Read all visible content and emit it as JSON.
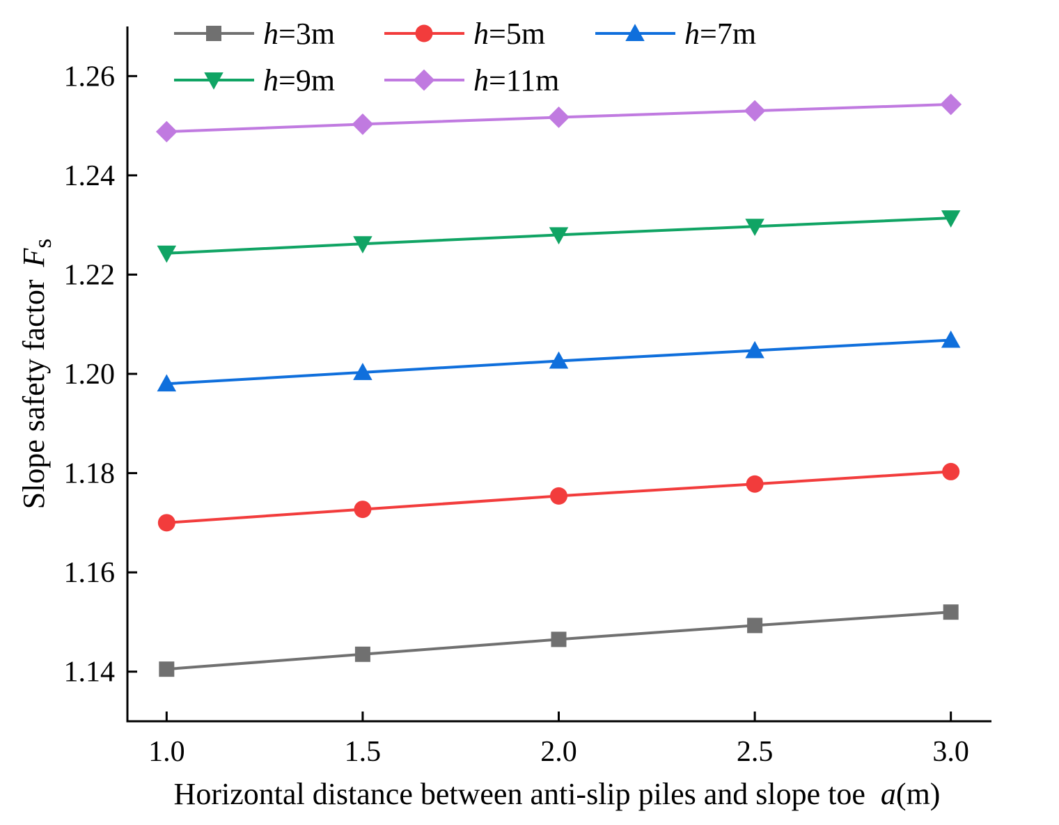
{
  "chart_data": {
    "type": "line",
    "xlabel": "Horizontal distance between anti-slip piles and slope toe",
    "xlabel_var": "a",
    "xlabel_unit": "(m)",
    "ylabel": "Slope safety factor",
    "ylabel_var": "F",
    "ylabel_sub": "s",
    "xlim": [
      0.9,
      3.1
    ],
    "ylim": [
      1.13,
      1.27
    ],
    "x": [
      1.0,
      1.5,
      2.0,
      2.5,
      3.0
    ],
    "x_tick_labels": [
      "1.0",
      "1.5",
      "2.0",
      "2.5",
      "3.0"
    ],
    "y_ticks": [
      1.14,
      1.16,
      1.18,
      1.2,
      1.22,
      1.24,
      1.26
    ],
    "y_tick_labels": [
      "1.14",
      "1.16",
      "1.18",
      "1.20",
      "1.22",
      "1.24",
      "1.26"
    ],
    "legend_position": "top-left",
    "series": [
      {
        "name": "h=3m",
        "var": "h",
        "suffix": "=3m",
        "color": "#707070",
        "marker": "square",
        "values": [
          1.1405,
          1.1435,
          1.1465,
          1.1493,
          1.152
        ]
      },
      {
        "name": "h=5m",
        "var": "h",
        "suffix": "=5m",
        "color": "#f23c3c",
        "marker": "circle",
        "values": [
          1.17,
          1.1727,
          1.1754,
          1.1778,
          1.1803
        ]
      },
      {
        "name": "h=7m",
        "var": "h",
        "suffix": "=7m",
        "color": "#0f6fdc",
        "marker": "triangle-up",
        "values": [
          1.198,
          1.2003,
          1.2026,
          1.2047,
          1.2068
        ]
      },
      {
        "name": "h=9m",
        "var": "h",
        "suffix": "=9m",
        "color": "#10a464",
        "marker": "triangle-down",
        "values": [
          1.2243,
          1.2262,
          1.228,
          1.2297,
          1.2314
        ]
      },
      {
        "name": "h=11m",
        "var": "h",
        "suffix": "=11m",
        "color": "#c07ae0",
        "marker": "diamond",
        "values": [
          1.2488,
          1.2503,
          1.2517,
          1.253,
          1.2543
        ]
      }
    ]
  }
}
